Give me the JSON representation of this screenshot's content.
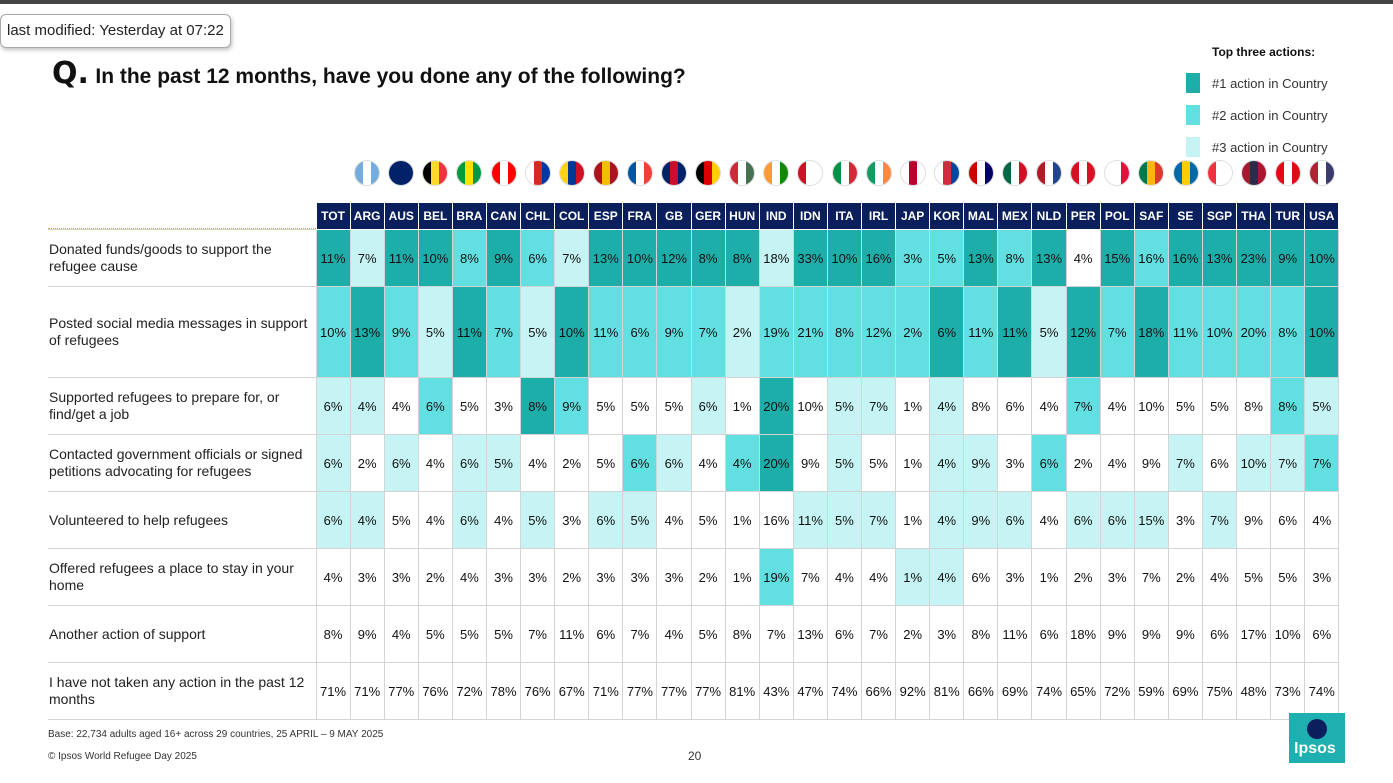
{
  "tooltip": "last modified: Yesterday at 07:22",
  "title": {
    "q": "Q.",
    "text": "In the past 12 months, have you done any of the following?"
  },
  "legend": {
    "title": "Top three actions:",
    "items": [
      {
        "label": "#1 action in Country",
        "color": "#1eaeaa"
      },
      {
        "label": "#2 action in Country",
        "color": "#62dfe0"
      },
      {
        "label": "#3 action in Country",
        "color": "#c6f3f3"
      }
    ]
  },
  "colors": {
    "rank1": "#1eaeaa",
    "rank2": "#62dfe0",
    "rank3": "#c6f3f3",
    "header": "#0a1f5c"
  },
  "chart_data": {
    "type": "table",
    "title": "In the past 12 months, have you done any of the following?",
    "columns": [
      "TOT",
      "ARG",
      "AUS",
      "BEL",
      "BRA",
      "CAN",
      "CHL",
      "COL",
      "ESP",
      "FRA",
      "GB",
      "GER",
      "HUN",
      "IND",
      "IDN",
      "ITA",
      "IRL",
      "JAP",
      "KOR",
      "MAL",
      "MEX",
      "NLD",
      "PER",
      "POL",
      "SAF",
      "SE",
      "SGP",
      "THA",
      "TUR",
      "USA"
    ],
    "rows": [
      {
        "label": "Donated funds/goods to support the refugee cause",
        "values": [
          "11%",
          "7%",
          "11%",
          "10%",
          "8%",
          "9%",
          "6%",
          "7%",
          "13%",
          "10%",
          "12%",
          "8%",
          "8%",
          "18%",
          "33%",
          "10%",
          "16%",
          "3%",
          "5%",
          "13%",
          "8%",
          "13%",
          "4%",
          "15%",
          "16%",
          "16%",
          "13%",
          "23%",
          "9%",
          "10%"
        ],
        "ranks": [
          1,
          3,
          1,
          1,
          2,
          1,
          2,
          3,
          1,
          1,
          1,
          1,
          1,
          3,
          1,
          1,
          1,
          2,
          2,
          1,
          2,
          1,
          0,
          1,
          2,
          1,
          1,
          1,
          1,
          1
        ]
      },
      {
        "label": "Posted social media messages in support of refugees",
        "values": [
          "10%",
          "13%",
          "9%",
          "5%",
          "11%",
          "7%",
          "5%",
          "10%",
          "11%",
          "6%",
          "9%",
          "7%",
          "2%",
          "19%",
          "21%",
          "8%",
          "12%",
          "2%",
          "6%",
          "11%",
          "11%",
          "5%",
          "12%",
          "7%",
          "18%",
          "11%",
          "10%",
          "20%",
          "8%",
          "10%"
        ],
        "ranks": [
          2,
          1,
          2,
          3,
          1,
          2,
          3,
          1,
          2,
          2,
          2,
          2,
          3,
          2,
          2,
          2,
          2,
          2,
          1,
          2,
          1,
          3,
          1,
          2,
          1,
          2,
          2,
          2,
          2,
          1
        ]
      },
      {
        "label": "Supported refugees to prepare for, or find/get a job",
        "values": [
          "6%",
          "4%",
          "4%",
          "6%",
          "5%",
          "3%",
          "8%",
          "9%",
          "5%",
          "5%",
          "5%",
          "6%",
          "1%",
          "20%",
          "10%",
          "5%",
          "7%",
          "1%",
          "4%",
          "8%",
          "6%",
          "4%",
          "7%",
          "4%",
          "10%",
          "5%",
          "5%",
          "8%",
          "8%",
          "5%"
        ],
        "ranks": [
          3,
          3,
          0,
          2,
          0,
          0,
          1,
          2,
          0,
          0,
          0,
          3,
          0,
          1,
          0,
          3,
          3,
          0,
          3,
          0,
          0,
          0,
          2,
          0,
          0,
          0,
          0,
          0,
          2,
          3
        ]
      },
      {
        "label": "Contacted government officials or signed petitions advocating for refugees",
        "values": [
          "6%",
          "2%",
          "6%",
          "4%",
          "6%",
          "5%",
          "4%",
          "2%",
          "5%",
          "6%",
          "6%",
          "4%",
          "4%",
          "20%",
          "9%",
          "5%",
          "5%",
          "1%",
          "4%",
          "9%",
          "3%",
          "6%",
          "2%",
          "4%",
          "9%",
          "7%",
          "6%",
          "10%",
          "7%",
          "7%"
        ],
        "ranks": [
          3,
          0,
          3,
          0,
          3,
          3,
          0,
          0,
          0,
          2,
          3,
          0,
          2,
          1,
          0,
          3,
          0,
          0,
          3,
          3,
          0,
          2,
          0,
          0,
          0,
          3,
          0,
          3,
          3,
          2
        ]
      },
      {
        "label": "Volunteered to help refugees",
        "values": [
          "6%",
          "4%",
          "5%",
          "4%",
          "6%",
          "4%",
          "5%",
          "3%",
          "6%",
          "5%",
          "4%",
          "5%",
          "1%",
          "16%",
          "11%",
          "5%",
          "7%",
          "1%",
          "4%",
          "9%",
          "6%",
          "4%",
          "6%",
          "6%",
          "15%",
          "3%",
          "7%",
          "9%",
          "6%",
          "4%"
        ],
        "ranks": [
          3,
          3,
          0,
          0,
          3,
          0,
          3,
          0,
          3,
          3,
          0,
          0,
          0,
          0,
          3,
          3,
          3,
          0,
          3,
          3,
          3,
          0,
          3,
          3,
          3,
          0,
          3,
          0,
          0,
          0
        ]
      },
      {
        "label": "Offered refugees a place to stay in your home",
        "values": [
          "4%",
          "3%",
          "3%",
          "2%",
          "4%",
          "3%",
          "3%",
          "2%",
          "3%",
          "3%",
          "3%",
          "2%",
          "1%",
          "19%",
          "7%",
          "4%",
          "4%",
          "1%",
          "4%",
          "6%",
          "3%",
          "1%",
          "2%",
          "3%",
          "7%",
          "2%",
          "4%",
          "5%",
          "5%",
          "3%"
        ],
        "ranks": [
          0,
          0,
          0,
          0,
          0,
          0,
          0,
          0,
          0,
          0,
          0,
          0,
          0,
          2,
          0,
          0,
          0,
          3,
          3,
          0,
          0,
          0,
          0,
          0,
          0,
          0,
          0,
          0,
          0,
          0
        ]
      },
      {
        "label": "Another action of support",
        "values": [
          "8%",
          "9%",
          "4%",
          "5%",
          "5%",
          "5%",
          "7%",
          "11%",
          "6%",
          "7%",
          "4%",
          "5%",
          "8%",
          "7%",
          "13%",
          "6%",
          "7%",
          "2%",
          "3%",
          "8%",
          "11%",
          "6%",
          "18%",
          "9%",
          "9%",
          "9%",
          "6%",
          "17%",
          "10%",
          "6%"
        ],
        "ranks": [
          0,
          0,
          0,
          0,
          0,
          0,
          0,
          0,
          0,
          0,
          0,
          0,
          0,
          0,
          0,
          0,
          0,
          0,
          0,
          0,
          0,
          0,
          0,
          0,
          0,
          0,
          0,
          0,
          0,
          0
        ]
      },
      {
        "label": "I have not taken any action in the past 12 months",
        "values": [
          "71%",
          "71%",
          "77%",
          "76%",
          "72%",
          "78%",
          "76%",
          "67%",
          "71%",
          "77%",
          "77%",
          "77%",
          "81%",
          "43%",
          "47%",
          "74%",
          "66%",
          "92%",
          "81%",
          "66%",
          "69%",
          "74%",
          "65%",
          "72%",
          "59%",
          "69%",
          "75%",
          "48%",
          "73%",
          "74%"
        ],
        "ranks": [
          0,
          0,
          0,
          0,
          0,
          0,
          0,
          0,
          0,
          0,
          0,
          0,
          0,
          0,
          0,
          0,
          0,
          0,
          0,
          0,
          0,
          0,
          0,
          0,
          0,
          0,
          0,
          0,
          0,
          0
        ]
      }
    ]
  },
  "flags": [
    {
      "code": "ARG",
      "colors": [
        "#74acdf",
        "#ffffff",
        "#74acdf"
      ]
    },
    {
      "code": "AUS",
      "colors": [
        "#012169",
        "#012169",
        "#012169"
      ]
    },
    {
      "code": "BEL",
      "colors": [
        "#000000",
        "#fdda24",
        "#ef3340"
      ]
    },
    {
      "code": "BRA",
      "colors": [
        "#009c3b",
        "#ffdf00",
        "#009c3b"
      ]
    },
    {
      "code": "CAN",
      "colors": [
        "#ff0000",
        "#ffffff",
        "#ff0000"
      ]
    },
    {
      "code": "CHL",
      "colors": [
        "#ffffff",
        "#d52b1e",
        "#0039a6"
      ]
    },
    {
      "code": "COL",
      "colors": [
        "#fcd116",
        "#003893",
        "#ce1126"
      ]
    },
    {
      "code": "ESP",
      "colors": [
        "#aa151b",
        "#f1bf00",
        "#aa151b"
      ]
    },
    {
      "code": "FRA",
      "colors": [
        "#0055a4",
        "#ffffff",
        "#ef4135"
      ]
    },
    {
      "code": "GB",
      "colors": [
        "#012169",
        "#c8102e",
        "#012169"
      ]
    },
    {
      "code": "GER",
      "colors": [
        "#000000",
        "#dd0000",
        "#ffce00"
      ]
    },
    {
      "code": "HUN",
      "colors": [
        "#ce2939",
        "#ffffff",
        "#477050"
      ]
    },
    {
      "code": "IND",
      "colors": [
        "#ff9933",
        "#ffffff",
        "#138808"
      ]
    },
    {
      "code": "IDN",
      "colors": [
        "#ce1126",
        "#ffffff",
        "#ffffff"
      ]
    },
    {
      "code": "ITA",
      "colors": [
        "#009246",
        "#ffffff",
        "#ce2b37"
      ]
    },
    {
      "code": "IRL",
      "colors": [
        "#169b62",
        "#ffffff",
        "#ff883e"
      ]
    },
    {
      "code": "JAP",
      "colors": [
        "#ffffff",
        "#bc002d",
        "#ffffff"
      ]
    },
    {
      "code": "KOR",
      "colors": [
        "#ffffff",
        "#cd2e3a",
        "#0047a0"
      ]
    },
    {
      "code": "MAL",
      "colors": [
        "#cc0001",
        "#ffffff",
        "#010066"
      ]
    },
    {
      "code": "MEX",
      "colors": [
        "#006847",
        "#ffffff",
        "#ce1126"
      ]
    },
    {
      "code": "NLD",
      "colors": [
        "#ae1c28",
        "#ffffff",
        "#21468b"
      ]
    },
    {
      "code": "PER",
      "colors": [
        "#d91023",
        "#ffffff",
        "#d91023"
      ]
    },
    {
      "code": "POL",
      "colors": [
        "#ffffff",
        "#ffffff",
        "#dc143c"
      ]
    },
    {
      "code": "SAF",
      "colors": [
        "#007a4d",
        "#ffb612",
        "#de3831"
      ]
    },
    {
      "code": "SE",
      "colors": [
        "#006aa7",
        "#fecc00",
        "#006aa7"
      ]
    },
    {
      "code": "SGP",
      "colors": [
        "#ef3340",
        "#ffffff",
        "#ffffff"
      ]
    },
    {
      "code": "THA",
      "colors": [
        "#a51931",
        "#2d2a4a",
        "#a51931"
      ]
    },
    {
      "code": "TUR",
      "colors": [
        "#e30a17",
        "#ffffff",
        "#e30a17"
      ]
    },
    {
      "code": "USA",
      "colors": [
        "#b22234",
        "#ffffff",
        "#3c3b6e"
      ]
    }
  ],
  "footer": {
    "base": "Base: 22,734 adults aged 16+ across 29 countries, 25 APRIL – 9 MAY 2025",
    "copyright": "© Ipsos World Refugee Day 2025",
    "page": "20"
  },
  "logo": "Ipsos"
}
